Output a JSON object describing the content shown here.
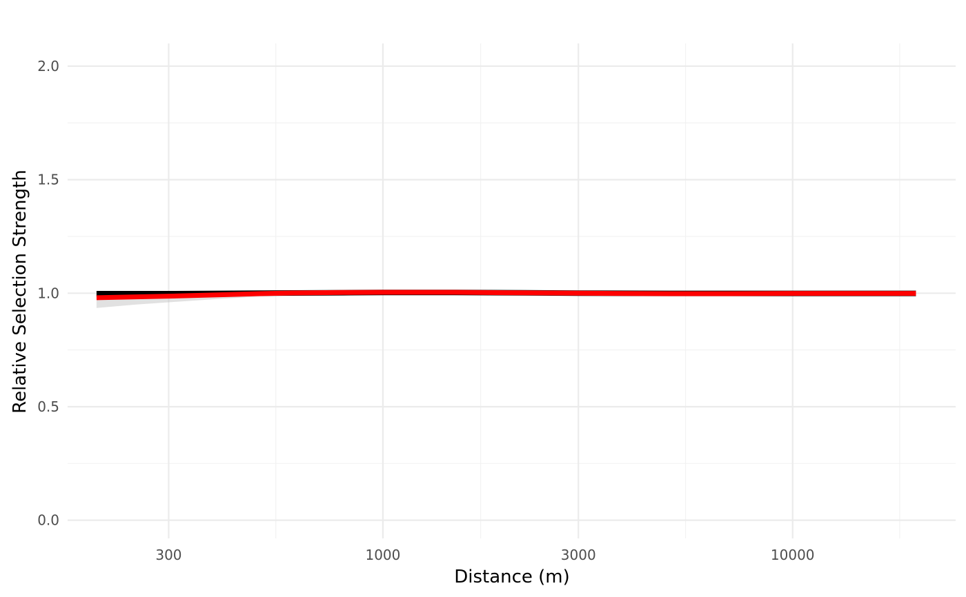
{
  "chart_data": {
    "type": "line",
    "title": "",
    "xlabel": "Distance (m)",
    "ylabel": "Relative Selection Strength",
    "x_scale": "log10",
    "xlim": [
      170,
      25000
    ],
    "ylim": [
      -0.08,
      2.1
    ],
    "x_ticks": [
      300,
      1000,
      3000,
      10000
    ],
    "x_tick_labels": [
      "300",
      "1000",
      "3000",
      "10000"
    ],
    "y_ticks": [
      0,
      0.5,
      1,
      1.5,
      2
    ],
    "y_tick_labels": [
      "0.0",
      "0.5",
      "1.0",
      "1.5",
      "2.0"
    ],
    "grid": true,
    "legend": "none",
    "colors": {
      "band": "#bdbdbd",
      "black_series": "#000000",
      "red_series": "#ff0000",
      "grid_major": "#ebebeb",
      "grid_minor": "#f2f2f2"
    },
    "x": [
      200,
      250,
      300,
      400,
      500,
      600,
      800,
      1000,
      1500,
      2000,
      3000,
      5000,
      7000,
      10000,
      15000,
      20000
    ],
    "series": [
      {
        "color": "#bdbdbd",
        "role": "band",
        "lower": [
          0.935,
          0.95,
          0.96,
          0.975,
          0.985,
          0.99,
          0.995,
          0.998,
          0.999,
          0.998,
          0.996,
          0.995,
          0.995,
          0.996,
          0.997,
          0.997
        ],
        "upper": [
          0.985,
          0.99,
          0.995,
          1.0,
          1.003,
          1.004,
          1.005,
          1.005,
          1.005,
          1.004,
          1.002,
          1.001,
          1.0,
          1.0,
          1.0,
          1.0
        ]
      },
      {
        "color": "#000000",
        "values": [
          0.998,
          0.998,
          0.998,
          0.999,
          1.0,
          1.001,
          1.002,
          1.003,
          1.003,
          1.002,
          1.0,
          0.999,
          0.999,
          0.999,
          0.999,
          0.999
        ]
      },
      {
        "color": "#ff0000",
        "values": [
          0.98,
          0.984,
          0.987,
          0.993,
          0.998,
          1.001,
          1.003,
          1.004,
          1.004,
          1.002,
          1.0,
          0.998,
          0.998,
          0.999,
          0.999,
          0.999
        ]
      }
    ]
  }
}
